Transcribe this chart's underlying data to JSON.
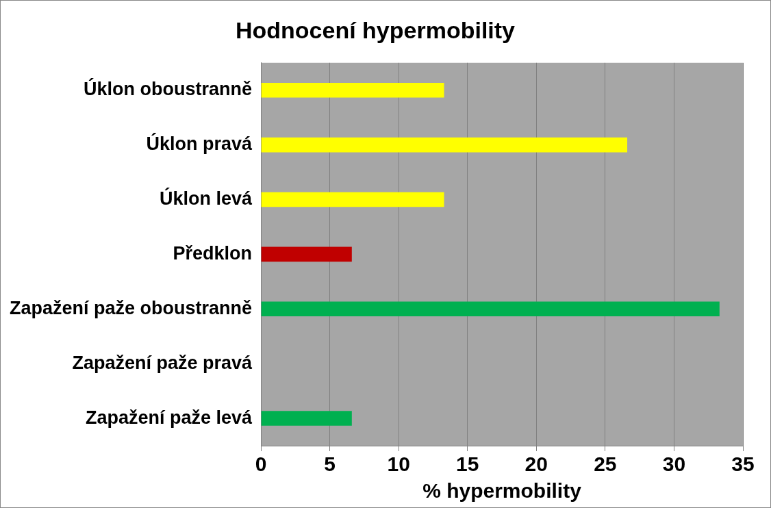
{
  "chart_data": {
    "type": "bar",
    "orientation": "horizontal",
    "title": "Hodnocení hypermobility",
    "xlabel": "% hypermobility",
    "categories": [
      "Úklon oboustranně",
      "Úklon pravá",
      "Úklon levá",
      "Předklon",
      "Zapažení paže oboustranně",
      "Zapažení paže pravá",
      "Zapažení paže levá"
    ],
    "values": [
      13.3,
      26.6,
      13.3,
      6.6,
      33.3,
      0,
      6.6
    ],
    "colors": [
      "#ffff00",
      "#ffff00",
      "#ffff00",
      "#c00000",
      "#00b050",
      "#00b050",
      "#00b050"
    ],
    "xlim": [
      0,
      35
    ],
    "xticks": [
      0,
      5,
      10,
      15,
      20,
      25,
      30,
      35
    ],
    "grid": "x",
    "legend": false
  }
}
